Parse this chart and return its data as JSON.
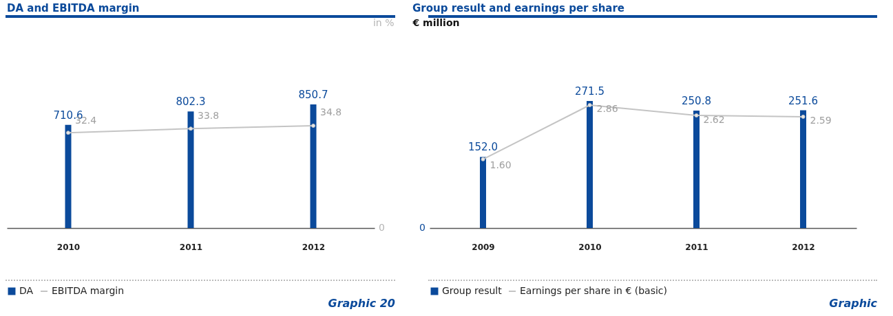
{
  "chart_data": [
    {
      "type": "bar",
      "title": "DA and EBITDA margin",
      "categories": [
        "2010",
        "2011",
        "2012"
      ],
      "series": [
        {
          "name": "DA",
          "color": "#0b4a9b",
          "values": [
            710.6,
            802.3,
            850.7
          ],
          "value_labels": [
            "710.6",
            "802.3",
            "850.7"
          ]
        },
        {
          "name": "EBITDA margin",
          "type": "line",
          "axis": "y2",
          "color": "#c4c4c4",
          "values": [
            32.4,
            33.8,
            34.8
          ],
          "value_labels": [
            "32.4",
            "33.8",
            "34.8"
          ]
        }
      ],
      "y2label": "in %",
      "marker": "circle",
      "legend": "bottom",
      "annotations": [
        "0",
        "Graphic 20"
      ]
    },
    {
      "type": "bar",
      "title": "Group result and earnings per share",
      "categories": [
        "2009",
        "2010",
        "2011",
        "2012"
      ],
      "series": [
        {
          "name": "Group result",
          "color": "#0b4a9b",
          "values": [
            152.0,
            271.5,
            250.8,
            251.6
          ],
          "value_labels": [
            "152.0",
            "271.5",
            "250.8",
            "251.6"
          ]
        },
        {
          "name": "Earnings per share in € (basic)",
          "type": "line",
          "axis": "y2",
          "color": "#c4c4c4",
          "values": [
            1.6,
            2.86,
            2.62,
            2.59
          ],
          "value_labels": [
            "1.60",
            "2.86",
            "2.62",
            "2.59"
          ]
        }
      ],
      "ylabel": "€ million",
      "marker": "circle",
      "legend": "bottom",
      "annotations": [
        "0",
        "Graphic"
      ]
    }
  ]
}
